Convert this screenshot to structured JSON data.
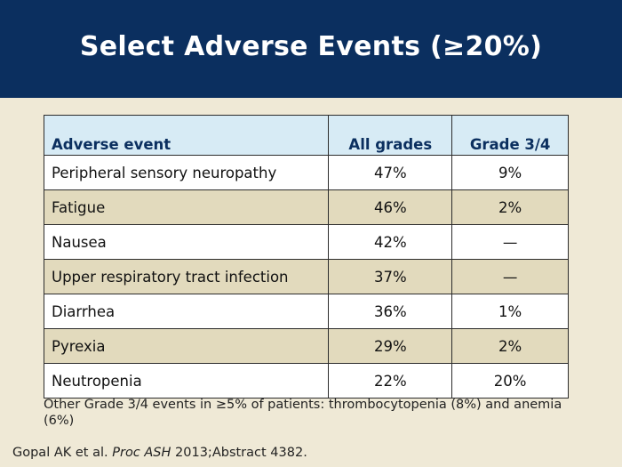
{
  "header": {
    "title": "Select Adverse Events (≥20%)"
  },
  "table": {
    "columns": [
      "Adverse event",
      "All grades",
      "Grade 3/4"
    ],
    "rows": [
      {
        "event": "Peripheral sensory neuropathy",
        "all_grades": "47%",
        "grade_3_4": "9%"
      },
      {
        "event": "Fatigue",
        "all_grades": "46%",
        "grade_3_4": "2%"
      },
      {
        "event": "Nausea",
        "all_grades": "42%",
        "grade_3_4": "—"
      },
      {
        "event": "Upper respiratory tract infection",
        "all_grades": "37%",
        "grade_3_4": "—"
      },
      {
        "event": "Diarrhea",
        "all_grades": "36%",
        "grade_3_4": "1%"
      },
      {
        "event": "Pyrexia",
        "all_grades": "29%",
        "grade_3_4": "2%"
      },
      {
        "event": "Neutropenia",
        "all_grades": "22%",
        "grade_3_4": "20%"
      }
    ]
  },
  "footnote": "Other Grade 3/4 events in ≥5% of patients: thrombocytopenia (8%) and anemia (6%)",
  "citation": {
    "authors": "Gopal AK et al. ",
    "journal": "Proc ASH",
    "details": " 2013;Abstract 4382."
  },
  "colors": {
    "header_bg": "#0b2f5f",
    "page_bg": "#efe9d6",
    "table_header_bg": "#d7ebf5",
    "row_alt_bg": "#e2dabd"
  }
}
